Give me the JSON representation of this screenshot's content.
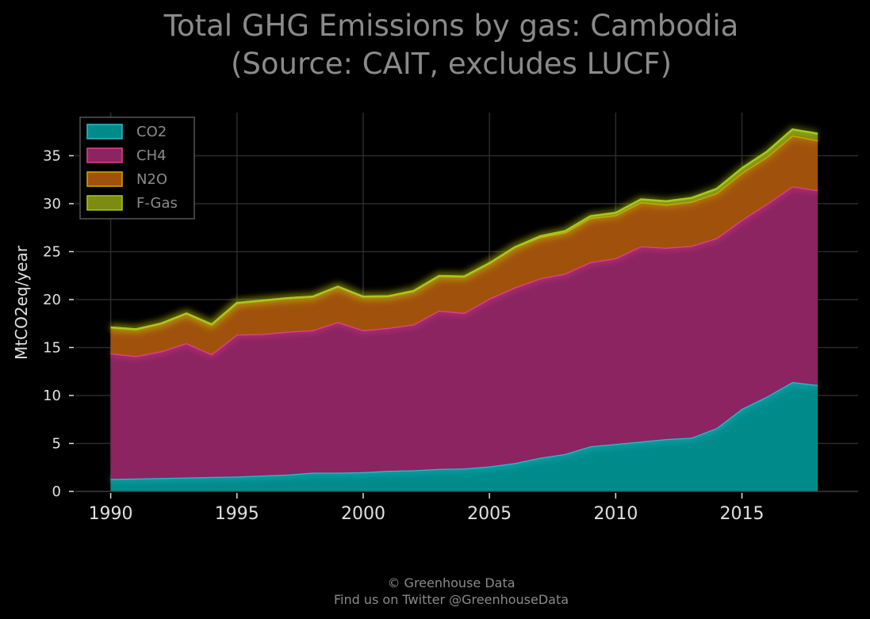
{
  "chart_data": {
    "type": "area",
    "stacked": true,
    "title_lines": [
      "Total GHG Emissions by gas: Cambodia",
      "(Source: CAIT, excludes LUCF)"
    ],
    "xlabel": "",
    "ylabel": "MtCO2eq/year",
    "xlim": [
      1988.6,
      2019.6
    ],
    "ylim": [
      0,
      39.5
    ],
    "x_ticks": [
      1990,
      1995,
      2000,
      2005,
      2010,
      2015
    ],
    "y_ticks": [
      0,
      5,
      10,
      15,
      20,
      25,
      30,
      35
    ],
    "grid": true,
    "legend_position": "top-left",
    "x": [
      1990,
      1991,
      1992,
      1993,
      1994,
      1995,
      1996,
      1997,
      1998,
      1999,
      2000,
      2001,
      2002,
      2003,
      2004,
      2005,
      2006,
      2007,
      2008,
      2009,
      2010,
      2011,
      2012,
      2013,
      2014,
      2015,
      2016,
      2017,
      2018
    ],
    "series": [
      {
        "name": "CO2",
        "color": "#008b8b",
        "line_color": "#2bbcc8",
        "values": [
          1.3,
          1.35,
          1.4,
          1.45,
          1.5,
          1.55,
          1.65,
          1.75,
          1.95,
          1.95,
          2.0,
          2.15,
          2.2,
          2.35,
          2.4,
          2.6,
          2.95,
          3.5,
          3.9,
          4.7,
          4.95,
          5.2,
          5.45,
          5.6,
          6.6,
          8.6,
          9.9,
          11.4,
          11.1
        ]
      },
      {
        "name": "CH4",
        "color": "#8b2461",
        "line_color": "#e8408c",
        "values": [
          13.1,
          12.75,
          13.2,
          14.0,
          12.8,
          14.8,
          14.75,
          14.9,
          14.85,
          15.7,
          14.8,
          14.9,
          15.2,
          16.5,
          16.2,
          17.5,
          18.3,
          18.7,
          18.8,
          19.2,
          19.35,
          20.35,
          19.95,
          20.0,
          19.8,
          19.7,
          20.1,
          20.4,
          20.3
        ]
      },
      {
        "name": "N2O",
        "color": "#a0520c",
        "line_color": "#d4a800",
        "values": [
          2.7,
          2.8,
          2.9,
          3.1,
          3.1,
          3.3,
          3.5,
          3.5,
          3.5,
          3.7,
          3.5,
          3.3,
          3.5,
          3.6,
          3.8,
          3.7,
          4.2,
          4.3,
          4.3,
          4.6,
          4.5,
          4.6,
          4.5,
          4.6,
          4.7,
          4.9,
          4.9,
          5.3,
          5.2
        ]
      },
      {
        "name": "F-Gas",
        "color": "#7d8b10",
        "line_color": "#a8c81c",
        "values": [
          0.0,
          0.0,
          0.0,
          0.0,
          0.0,
          0.0,
          0.0,
          0.0,
          0.0,
          0.0,
          0.0,
          0.0,
          0.0,
          0.0,
          0.0,
          0.0,
          0.0,
          0.1,
          0.15,
          0.2,
          0.25,
          0.3,
          0.35,
          0.4,
          0.45,
          0.5,
          0.55,
          0.65,
          0.7
        ]
      }
    ]
  },
  "footer": {
    "line1": "© Greenhouse Data",
    "line2": "Find us on Twitter @GreenhouseData"
  }
}
